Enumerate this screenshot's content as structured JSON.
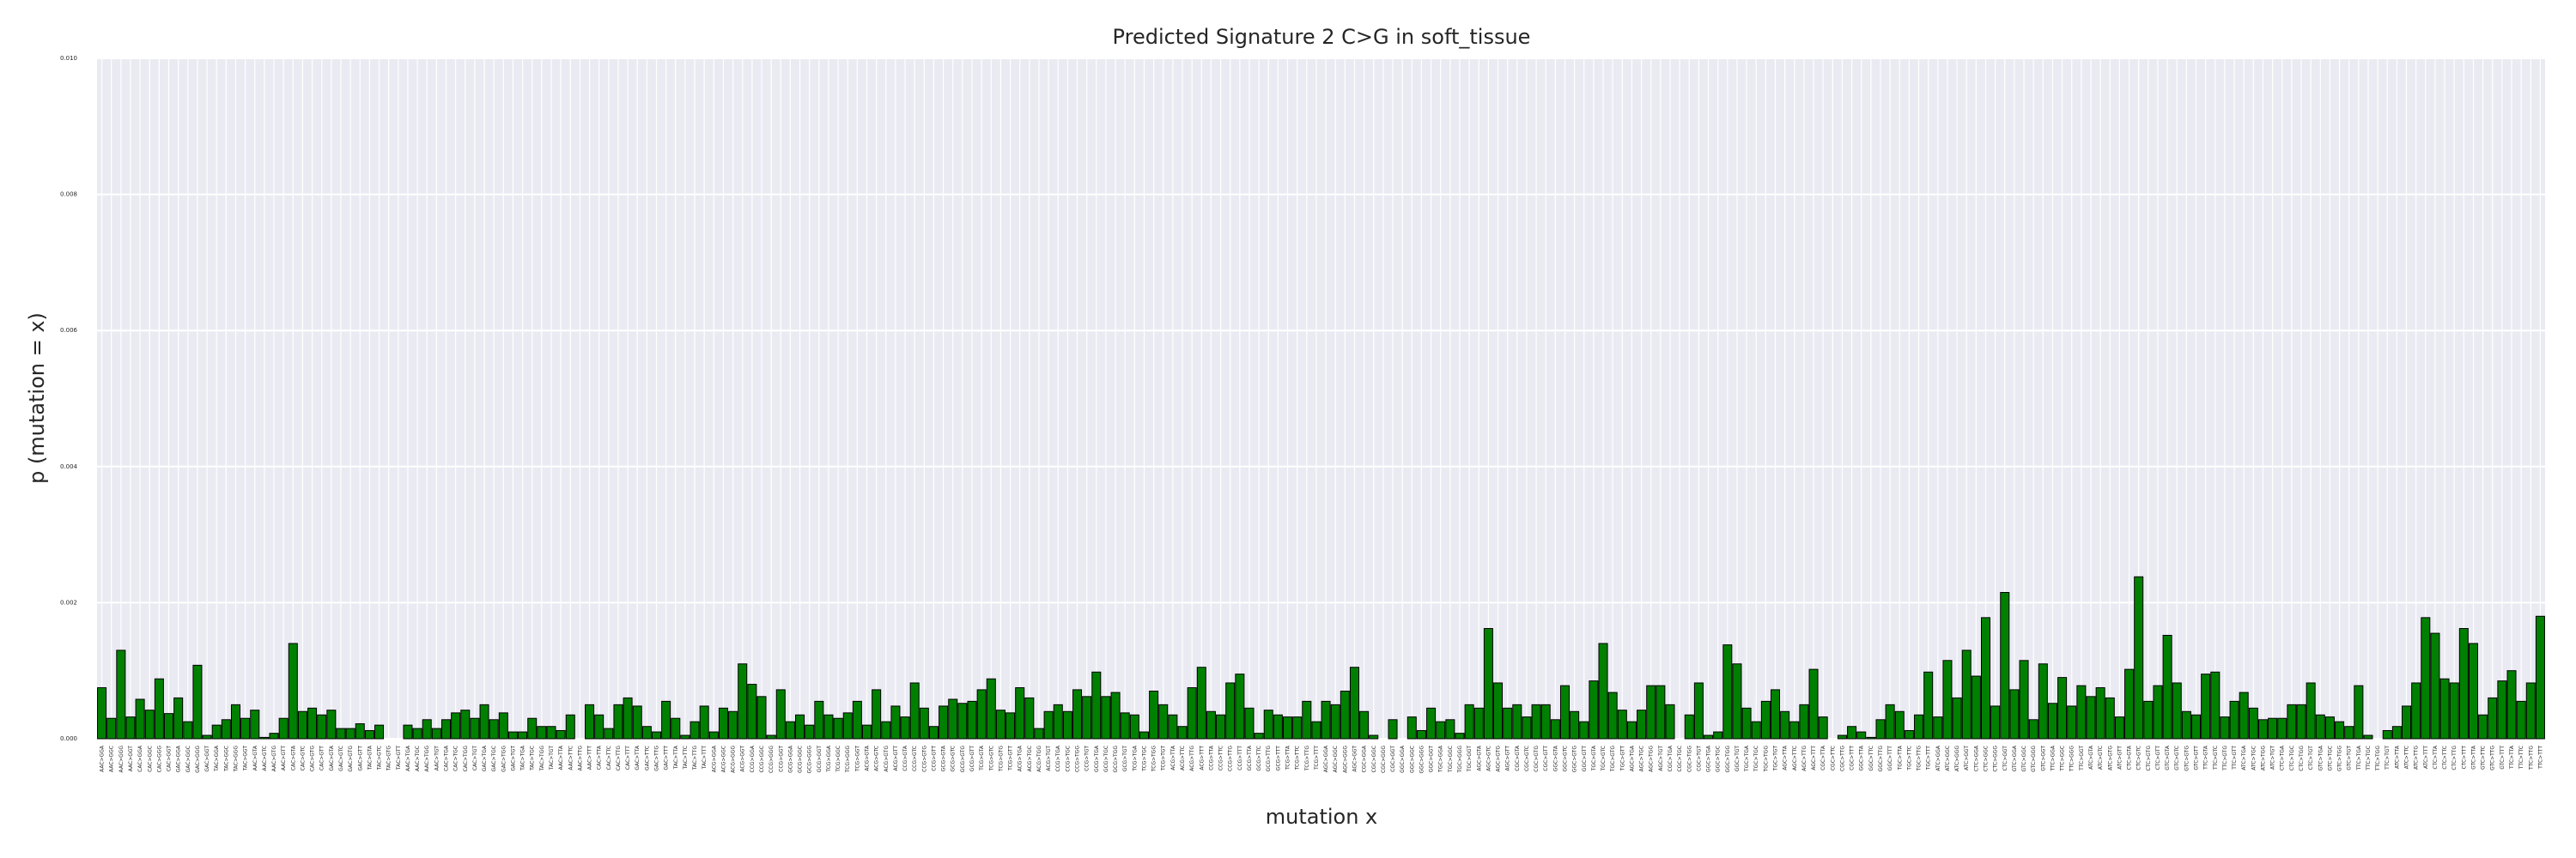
{
  "chart_data": {
    "type": "bar",
    "title": "Predicted Signature 2 C>G in soft_tissue",
    "xlabel": "mutation x",
    "ylabel": "p (mutation = x)",
    "ylim": [
      0,
      0.01
    ],
    "yticks": [
      "0.000",
      "0.002",
      "0.004",
      "0.006",
      "0.008",
      "0.010"
    ],
    "bar_color": "#008000",
    "grid": true,
    "categories": [
      "AAC>GGA",
      "AAC>GGC",
      "AAC>GGG",
      "AAC>GGT",
      "CAC>GGA",
      "CAC>GGC",
      "CAC>GGG",
      "CAC>GGT",
      "GAC>GGA",
      "GAC>GGC",
      "GAC>GGG",
      "GAC>GGT",
      "TAC>GGA",
      "TAC>GGC",
      "TAC>GGG",
      "TAC>GGT",
      "AAC>GTA",
      "AAC>GTC",
      "AAC>GTG",
      "AAC>GTT",
      "CAC>GTA",
      "CAC>GTC",
      "CAC>GTG",
      "CAC>GTT",
      "GAC>GTA",
      "GAC>GTC",
      "GAC>GTG",
      "GAC>GTT",
      "TAC>GTA",
      "TAC>GTC",
      "TAC>GTG",
      "TAC>GTT",
      "AAC>TGA",
      "AAC>TGC",
      "AAC>TGG",
      "AAC>TGT",
      "CAC>TGA",
      "CAC>TGC",
      "CAC>TGG",
      "CAC>TGT",
      "GAC>TGA",
      "GAC>TGC",
      "GAC>TGG",
      "GAC>TGT",
      "TAC>TGA",
      "TAC>TGC",
      "TAC>TGG",
      "TAC>TGT",
      "AAC>TTA",
      "AAC>TTC",
      "AAC>TTG",
      "AAC>TTT",
      "CAC>TTA",
      "CAC>TTC",
      "CAC>TTG",
      "CAC>TTT",
      "GAC>TTA",
      "GAC>TTC",
      "GAC>TTG",
      "GAC>TTT",
      "TAC>TTA",
      "TAC>TTC",
      "TAC>TTG",
      "TAC>TTT",
      "ACG>GGA",
      "ACG>GGC",
      "ACG>GGG",
      "ACG>GGT",
      "CCG>GGA",
      "CCG>GGC",
      "CCG>GGG",
      "CCG>GGT",
      "GCG>GGA",
      "GCG>GGC",
      "GCG>GGG",
      "GCG>GGT",
      "TCG>GGA",
      "TCG>GGC",
      "TCG>GGG",
      "TCG>GGT",
      "ACG>GTA",
      "ACG>GTC",
      "ACG>GTG",
      "ACG>GTT",
      "CCG>GTA",
      "CCG>GTC",
      "CCG>GTG",
      "CCG>GTT",
      "GCG>GTA",
      "GCG>GTC",
      "GCG>GTG",
      "GCG>GTT",
      "TCG>GTA",
      "TCG>GTC",
      "TCG>GTG",
      "TCG>GTT",
      "ACG>TGA",
      "ACG>TGC",
      "ACG>TGG",
      "ACG>TGT",
      "CCG>TGA",
      "CCG>TGC",
      "CCG>TGG",
      "CCG>TGT",
      "GCG>TGA",
      "GCG>TGC",
      "GCG>TGG",
      "GCG>TGT",
      "TCG>TGA",
      "TCG>TGC",
      "TCG>TGG",
      "TCG>TGT",
      "ACG>TTA",
      "ACG>TTC",
      "ACG>TTG",
      "ACG>TTT",
      "CCG>TTA",
      "CCG>TTC",
      "CCG>TTG",
      "CCG>TTT",
      "GCG>TTA",
      "GCG>TTC",
      "GCG>TTG",
      "GCG>TTT",
      "TCG>TTA",
      "TCG>TTC",
      "TCG>TTG",
      "TCG>TTT",
      "AGC>GGA",
      "AGC>GGC",
      "AGC>GGG",
      "AGC>GGT",
      "CGC>GGA",
      "CGC>GGC",
      "CGC>GGG",
      "CGC>GGT",
      "GGC>GGA",
      "GGC>GGC",
      "GGC>GGG",
      "GGC>GGT",
      "TGC>GGA",
      "TGC>GGC",
      "TGC>GGG",
      "TGC>GGT",
      "AGC>GTA",
      "AGC>GTC",
      "AGC>GTG",
      "AGC>GTT",
      "CGC>GTA",
      "CGC>GTC",
      "CGC>GTG",
      "CGC>GTT",
      "GGC>GTA",
      "GGC>GTC",
      "GGC>GTG",
      "GGC>GTT",
      "TGC>GTA",
      "TGC>GTC",
      "TGC>GTG",
      "TGC>GTT",
      "AGC>TGA",
      "AGC>TGC",
      "AGC>TGG",
      "AGC>TGT",
      "CGC>TGA",
      "CGC>TGC",
      "CGC>TGG",
      "CGC>TGT",
      "GGC>TGA",
      "GGC>TGC",
      "GGC>TGG",
      "GGC>TGT",
      "TGC>TGA",
      "TGC>TGC",
      "TGC>TGG",
      "TGC>TGT",
      "AGC>TTA",
      "AGC>TTC",
      "AGC>TTG",
      "AGC>TTT",
      "CGC>TTA",
      "CGC>TTC",
      "CGC>TTG",
      "CGC>TTT",
      "GGC>TTA",
      "GGC>TTC",
      "GGC>TTG",
      "GGC>TTT",
      "TGC>TTA",
      "TGC>TTC",
      "TGC>TTG",
      "TGC>TTT",
      "ATC>GGA",
      "ATC>GGC",
      "ATC>GGG",
      "ATC>GGT",
      "CTC>GGA",
      "CTC>GGC",
      "CTC>GGG",
      "CTC>GGT",
      "GTC>GGA",
      "GTC>GGC",
      "GTC>GGG",
      "GTC>GGT",
      "TTC>GGA",
      "TTC>GGC",
      "TTC>GGG",
      "TTC>GGT",
      "ATC>GTA",
      "ATC>GTC",
      "ATC>GTG",
      "ATC>GTT",
      "CTC>GTA",
      "CTC>GTC",
      "CTC>GTG",
      "CTC>GTT",
      "GTC>GTA",
      "GTC>GTC",
      "GTC>GTG",
      "GTC>GTT",
      "TTC>GTA",
      "TTC>GTC",
      "TTC>GTG",
      "TTC>GTT",
      "ATC>TGA",
      "ATC>TGC",
      "ATC>TGG",
      "ATC>TGT",
      "CTC>TGA",
      "CTC>TGC",
      "CTC>TGG",
      "CTC>TGT",
      "GTC>TGA",
      "GTC>TGC",
      "GTC>TGG",
      "GTC>TGT",
      "TTC>TGA",
      "TTC>TGC",
      "TTC>TGG",
      "TTC>TGT",
      "ATC>TTA",
      "ATC>TTC",
      "ATC>TTG",
      "ATC>TTT",
      "CTC>TTA",
      "CTC>TTC",
      "CTC>TTG",
      "CTC>TTT",
      "GTC>TTA",
      "GTC>TTC",
      "GTC>TTG",
      "GTC>TTT",
      "TTC>TTA",
      "TTC>TTC",
      "TTC>TTG",
      "TTC>TTT"
    ],
    "values": [
      0.00075,
      0.0003,
      0.0013,
      0.00032,
      0.00058,
      0.00042,
      0.00088,
      0.00037,
      0.0006,
      0.00025,
      0.00108,
      5e-05,
      0.0002,
      0.00028,
      0.0005,
      0.0003,
      0.00042,
      2e-05,
      8e-05,
      0.0003,
      0.0014,
      0.0004,
      0.00045,
      0.00035,
      0.00042,
      0.00015,
      0.00015,
      0.00022,
      0.00012,
      0.0002,
      0,
      0,
      0.0002,
      0.00015,
      0.00028,
      0.00015,
      0.00028,
      0.00038,
      0.00042,
      0.0003,
      0.0005,
      0.00028,
      0.00038,
      0.0001,
      0.0001,
      0.0003,
      0.00018,
      0.00018,
      0.00012,
      0.00035,
      0,
      0.0005,
      0.00035,
      0.00015,
      0.0005,
      0.0006,
      0.00048,
      0.00018,
      0.0001,
      0.00055,
      0.0003,
      5e-05,
      0.00025,
      0.00048,
      0.0001,
      0.00045,
      0.0004,
      0.0011,
      0.0008,
      0.00062,
      5e-05,
      0.00072,
      0.00025,
      0.00035,
      0.0002,
      0.00055,
      0.00035,
      0.0003,
      0.00038,
      0.00055,
      0.0002,
      0.00072,
      0.00025,
      0.00048,
      0.00032,
      0.00082,
      0.00045,
      0.00018,
      0.00048,
      0.00058,
      0.00052,
      0.00055,
      0.00072,
      0.00088,
      0.00042,
      0.00038,
      0.00075,
      0.0006,
      0.00015,
      0.0004,
      0.0005,
      0.0004,
      0.00072,
      0.00062,
      0.00098,
      0.00062,
      0.00068,
      0.00038,
      0.00035,
      0.0001,
      0.0007,
      0.0005,
      0.00035,
      0.00018,
      0.00075,
      0.00105,
      0.0004,
      0.00035,
      0.00082,
      0.00095,
      0.00045,
      8e-05,
      0.00042,
      0.00035,
      0.00032,
      0.00032,
      0.00055,
      0.00025,
      0.00055,
      0.0005,
      0.0007,
      0.00105,
      0.0004,
      5e-05,
      0,
      0.00028,
      0,
      0.00032,
      0.00012,
      0.00045,
      0.00025,
      0.00028,
      8e-05,
      0.0005,
      0.00045,
      0.00162,
      0.00082,
      0.00045,
      0.0005,
      0.00032,
      0.0005,
      0.0005,
      0.00028,
      0.00078,
      0.0004,
      0.00025,
      0.00085,
      0.0014,
      0.00068,
      0.00042,
      0.00025,
      0.00042,
      0.00078,
      0.00078,
      0.0005,
      0,
      0.00035,
      0.00082,
      5e-05,
      0.0001,
      0.00138,
      0.0011,
      0.00045,
      0.00025,
      0.00055,
      0.00072,
      0.0004,
      0.00025,
      0.0005,
      0.00102,
      0.00032,
      0,
      5e-05,
      0.00018,
      0.0001,
      2e-05,
      0.00028,
      0.0005,
      0.0004,
      0.00012,
      0.00035,
      0.00098,
      0.00032,
      0.00115,
      0.0006,
      0.0013,
      0.00092,
      0.00178,
      0.00048,
      0.00215,
      0.00072,
      0.00115,
      0.00028,
      0.0011,
      0.00052,
      0.0009,
      0.00048,
      0.00078,
      0.00062,
      0.00075,
      0.0006,
      0.00032,
      0.00102,
      0.00238,
      0.00055,
      0.00078,
      0.00152,
      0.00082,
      0.0004,
      0.00035,
      0.00095,
      0.00098,
      0.00032,
      0.00055,
      0.00068,
      0.00045,
      0.00028,
      0.0003,
      0.0003,
      0.0005,
      0.0005,
      0.00082,
      0.00035,
      0.00032,
      0.00025,
      0.00018,
      0.00078,
      5e-05,
      0,
      0.00012,
      0.00018,
      0.00048,
      0.00082,
      0.00178,
      0.00155,
      0.00088,
      0.00082,
      0.00162,
      0.0014,
      0.00035,
      0.0006,
      0.00085,
      0.001,
      0.00055,
      0.00082,
      0.0018
    ]
  }
}
